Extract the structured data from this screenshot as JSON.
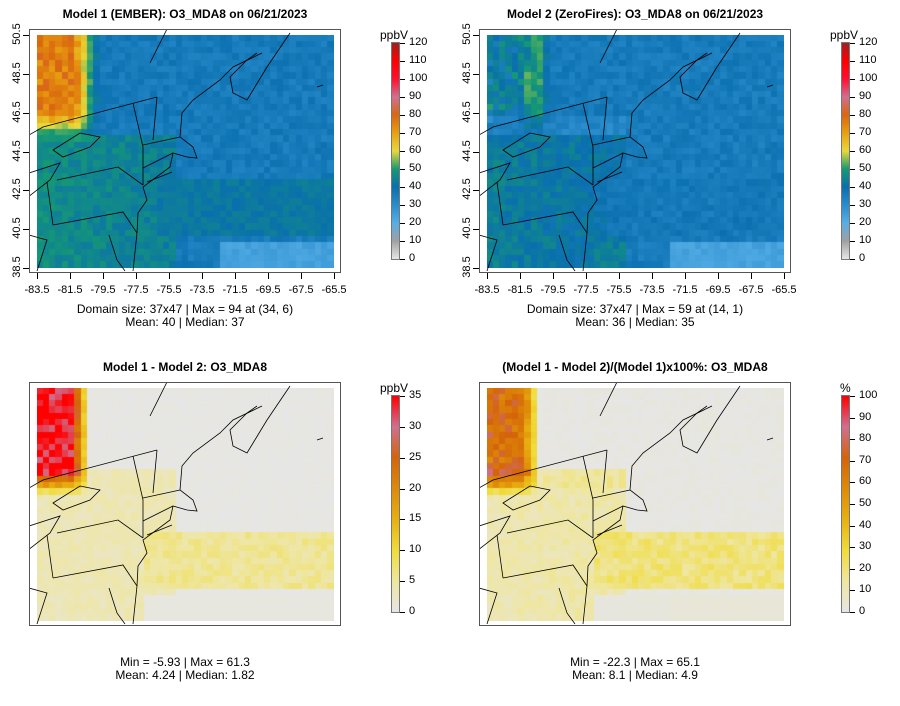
{
  "panels": [
    {
      "title": "Model 1 (EMBER): O3_MDA8 on 06/21/2023",
      "unit": "ppbV",
      "colorbar_ticks": [
        "0",
        "10",
        "20",
        "30",
        "40",
        "50",
        "60",
        "70",
        "80",
        "90",
        "100",
        "110",
        "120"
      ],
      "y_ticks": [
        "38.5",
        "40.5",
        "42.5",
        "44.5",
        "46.5",
        "48.5",
        "50.5"
      ],
      "x_ticks": [
        "-83.5",
        "-81.5",
        "-79.5",
        "-77.5",
        "-75.5",
        "-73.5",
        "-71.5",
        "-69.5",
        "-67.5",
        "-65.5"
      ],
      "caption1": "Domain size: 37x47 | Max = 94 at (34, 6)",
      "caption2": "Mean: 40 |  Median: 37"
    },
    {
      "title": "Model 2 (ZeroFires): O3_MDA8 on 06/21/2023",
      "unit": "ppbV",
      "colorbar_ticks": [
        "0",
        "10",
        "20",
        "30",
        "40",
        "50",
        "60",
        "70",
        "80",
        "90",
        "100",
        "110",
        "120"
      ],
      "y_ticks": [
        "38.5",
        "40.5",
        "42.5",
        "44.5",
        "46.5",
        "48.5",
        "50.5"
      ],
      "x_ticks": [
        "-83.5",
        "-81.5",
        "-79.5",
        "-77.5",
        "-75.5",
        "-73.5",
        "-71.5",
        "-69.5",
        "-67.5",
        "-65.5"
      ],
      "caption1": "Domain size: 37x47 | Max = 59 at (14, 1)",
      "caption2": "Mean: 36 |  Median: 35"
    },
    {
      "title": "Model 1 - Model 2: O3_MDA8",
      "unit": "ppbV",
      "colorbar_ticks": [
        "0",
        "5",
        "10",
        "15",
        "20",
        "25",
        "30",
        "35"
      ],
      "caption1": "Min = -5.93 | Max = 61.3",
      "caption2": "Mean: 4.24 |  Median: 1.82"
    },
    {
      "title": "(Model 1 - Model 2)/(Model 1)x100%: O3_MDA8",
      "unit": "%",
      "colorbar_ticks": [
        "0",
        "10",
        "20",
        "30",
        "40",
        "50",
        "60",
        "70",
        "80",
        "90",
        "100"
      ],
      "caption1": "Min = -22.3 | Max = 65.1",
      "caption2": "Mean: 8.1 |  Median: 4.9"
    }
  ],
  "colors": {
    "ozone_scale": [
      "#e6e6e6",
      "#a0a0a0",
      "#56aee6",
      "#2a8ccc",
      "#0a6fae",
      "#169a72",
      "#e8d83a",
      "#e8a010",
      "#d9660e",
      "#cf7090",
      "#ff1030",
      "#ff0000",
      "#a02020"
    ],
    "diff_scale": [
      "#e6e6e6",
      "#efe6a0",
      "#f0dc3a",
      "#e8b010",
      "#de8a08",
      "#d4640a",
      "#cf7090",
      "#ff0000"
    ]
  }
}
